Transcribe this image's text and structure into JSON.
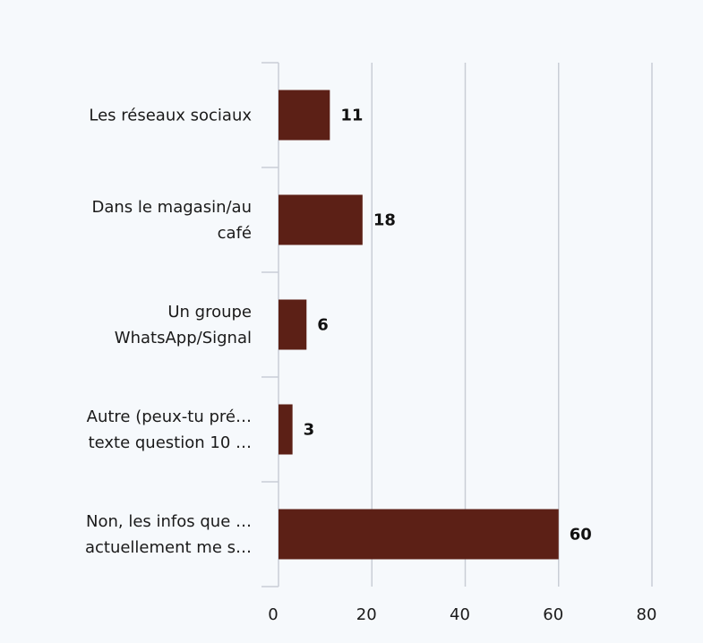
{
  "chart_data": {
    "type": "bar",
    "orientation": "horizontal",
    "categories": [
      [
        "Les réseaux sociaux"
      ],
      [
        "Dans le magasin/au",
        "café"
      ],
      [
        "Un groupe",
        "WhatsApp/Signal"
      ],
      [
        "Autre (peux-tu pré…",
        "texte question 10 …"
      ],
      [
        "Non, les infos que …",
        "actuellement me s…"
      ]
    ],
    "values": [
      11,
      18,
      6,
      3,
      60
    ],
    "xlim": [
      0,
      80
    ],
    "xticks": [
      "0",
      "20",
      "40",
      "60",
      "80"
    ],
    "grid": true,
    "bar_color": "#5c2016",
    "grid_color": "#c9ced6",
    "title": "",
    "xlabel": "",
    "ylabel": ""
  }
}
